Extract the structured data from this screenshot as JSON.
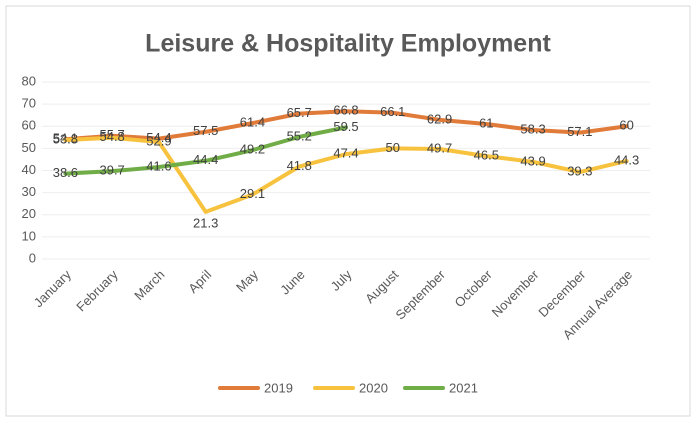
{
  "chart_data": {
    "type": "line",
    "title": "Leisure & Hospitality Employment",
    "categories": [
      "January",
      "February",
      "March",
      "April",
      "May",
      "June",
      "July",
      "August",
      "September",
      "October",
      "November",
      "December",
      "Annual Average"
    ],
    "series": [
      {
        "name": "2019",
        "color": "#e07b39",
        "values": [
          54.1,
          55.7,
          54.4,
          57.5,
          61.4,
          65.7,
          66.8,
          66.1,
          62.9,
          61,
          58.3,
          57.1,
          60
        ]
      },
      {
        "name": "2020",
        "color": "#f7c23e",
        "values": [
          53.8,
          54.8,
          52.9,
          21.3,
          29.1,
          41.8,
          47.4,
          50,
          49.7,
          46.5,
          43.9,
          39.3,
          44.3
        ]
      },
      {
        "name": "2021",
        "color": "#70ad47",
        "values": [
          38.6,
          39.7,
          41.6,
          44.4,
          49.2,
          55.2,
          59.5,
          null,
          null,
          null,
          null,
          null,
          null
        ]
      }
    ],
    "ylim": [
      0,
      80
    ],
    "yticks": [
      0,
      10,
      20,
      30,
      40,
      50,
      60,
      70,
      80
    ],
    "grid": true,
    "legend": "bottom"
  }
}
